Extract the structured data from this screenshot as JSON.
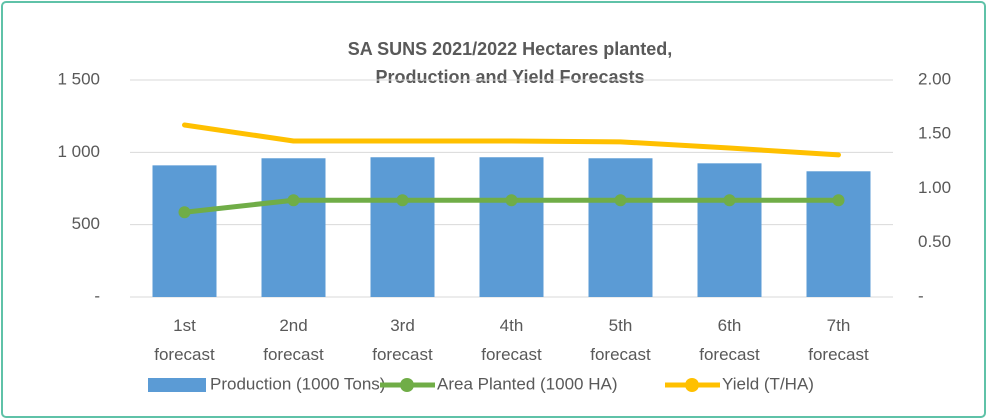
{
  "chart_data": {
    "type": "bar_line",
    "title": [
      "SA SUNS 2021/2022 Hectares planted,",
      "Production and Yield Forecasts"
    ],
    "categories": [
      "1st forecast",
      "2nd forecast",
      "3rd forecast",
      "4th forecast",
      "5th forecast",
      "6th forecast",
      "7th forecast"
    ],
    "series": [
      {
        "name": "Production (1000 Tons)",
        "type": "bar",
        "color": "#5b9bd5",
        "axis": "y",
        "values": [
          910,
          959,
          966,
          966,
          959,
          924,
          869
        ]
      },
      {
        "name": "Area Planted (1000 HA)",
        "type": "line",
        "color": "#70ad47",
        "axis": "y",
        "marker": true,
        "values": [
          586,
          669,
          669,
          669,
          669,
          669,
          669
        ]
      },
      {
        "name": "Yield (T/HA)",
        "type": "line",
        "color": "#ffc000",
        "axis": "y2",
        "marker": false,
        "values": [
          1.585,
          1.438,
          1.438,
          1.438,
          1.43,
          1.373,
          1.31
        ]
      }
    ],
    "ylim": [
      0,
      1500
    ],
    "yticks": [
      {
        "value": 0,
        "label": "-"
      },
      500,
      {
        "value": 1000,
        "label": "1 000"
      },
      {
        "value": 1500,
        "label": "1 500"
      }
    ],
    "y2lim": [
      0,
      2
    ],
    "y2ticks": [
      {
        "value": 0,
        "label": "-"
      },
      {
        "value": 0.5,
        "label": "0.50"
      },
      {
        "value": 1,
        "label": "1.00"
      },
      {
        "value": 1.5,
        "label": "1.50"
      },
      {
        "value": 2,
        "label": "2.00"
      }
    ],
    "grid": true,
    "legend": "bottom"
  }
}
